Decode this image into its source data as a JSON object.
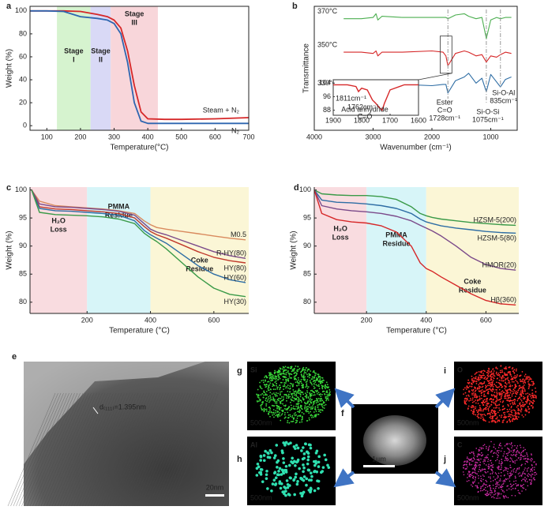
{
  "chart_data": [
    {
      "type": "line",
      "panel_label": "a",
      "x_label": "Temperature(°C)",
      "y_label": "Weight (%)",
      "xlim": [
        50,
        700
      ],
      "xticks": [
        100,
        200,
        300,
        400,
        500,
        600,
        700
      ],
      "ylim": [
        -4,
        104
      ],
      "yticks": [
        0,
        20,
        40,
        60,
        80,
        100
      ],
      "regions": [
        {
          "label": [
            "Stage",
            "I"
          ],
          "x0": 130,
          "x1": 230,
          "color": "#d6f3cf"
        },
        {
          "label": [
            "Stage",
            "II"
          ],
          "x0": 230,
          "x1": 290,
          "color": "#d9d9f6"
        },
        {
          "label": [
            "Stage",
            "III"
          ],
          "x0": 290,
          "x1": 430,
          "color": "#f8d6da"
        }
      ],
      "x": [
        50,
        100,
        150,
        200,
        250,
        280,
        300,
        320,
        340,
        360,
        380,
        400,
        450,
        500,
        600,
        700
      ],
      "series": [
        {
          "name": "Steam + N₂",
          "color": "#d62728",
          "values": [
            100,
            100,
            100,
            99.5,
            97,
            95,
            92,
            85,
            65,
            35,
            12,
            6,
            5.5,
            5.5,
            6,
            7
          ]
        },
        {
          "name": "N₂",
          "color": "#2e66b0",
          "values": [
            100,
            100,
            99.5,
            95,
            93.5,
            92,
            89,
            80,
            55,
            20,
            4,
            2,
            2,
            2,
            2,
            2
          ]
        }
      ]
    },
    {
      "type": "line",
      "panel_label": "b",
      "x_label": "Wavenumber (cm⁻¹)",
      "y_label": "Transmittance",
      "xlim": [
        4000,
        550
      ],
      "xticks": [
        4000,
        3000,
        2000,
        1000
      ],
      "ylim": [
        0,
        10
      ],
      "x": [
        3500,
        3200,
        3000,
        2950,
        2920,
        2850,
        2500,
        2000,
        1811,
        1762,
        1728,
        1600,
        1450,
        1375,
        1250,
        1150,
        1075,
        1000,
        900,
        835,
        750,
        650
      ],
      "series": [
        {
          "name": "370°C",
          "color": "#4caf50",
          "values": [
            9,
            9,
            9.1,
            9.4,
            8.9,
            9.2,
            9.1,
            9.1,
            9.1,
            9.1,
            9.0,
            9.3,
            9.4,
            9.2,
            9.0,
            9.1,
            7.4,
            8.9,
            9.1,
            9.0,
            9.1,
            9.1
          ]
        },
        {
          "name": "350°C",
          "color": "#d62728",
          "values": [
            6.3,
            6.3,
            6.2,
            6.4,
            6.0,
            6.3,
            6.3,
            6.4,
            6.3,
            6.0,
            5.2,
            6.2,
            6.4,
            6.3,
            6.0,
            6.1,
            5.5,
            6.0,
            5.9,
            6.1,
            6.3,
            6.2
          ]
        },
        {
          "name": "330°C",
          "color": "#2e6da4",
          "values": [
            3.2,
            3.3,
            3.1,
            3.8,
            3.0,
            3.6,
            3.7,
            3.6,
            3.7,
            3.7,
            3.0,
            4.0,
            4.3,
            4.6,
            3.8,
            4.2,
            3.1,
            4.5,
            3.9,
            3.5,
            4.1,
            4.3
          ]
        }
      ],
      "reference_lines": [
        1728,
        1075,
        835
      ],
      "annotations": [
        [
          "Ester",
          "C=O",
          "1728cm⁻¹"
        ],
        [
          "Si-O-Si",
          "1075cm⁻¹"
        ],
        [
          "Si-O-Al",
          "835cm⁻¹"
        ]
      ],
      "inset": {
        "xlim": [
          1900,
          1600
        ],
        "xticks": [
          1900,
          1800,
          1700,
          1600
        ],
        "ylim": [
          85,
          106
        ],
        "yticks": [
          88,
          96,
          104
        ],
        "x": [
          1900,
          1850,
          1820,
          1811,
          1800,
          1780,
          1765,
          1762,
          1750,
          1735,
          1728,
          1720,
          1700,
          1650,
          1600
        ],
        "values": [
          103,
          103,
          102,
          99,
          101,
          100,
          95,
          94,
          92,
          89,
          88,
          92,
          100,
          103,
          103
        ],
        "color": "#d62728",
        "annotations": [
          "1811cm⁻¹",
          "1762cm⁻¹",
          "Acid anhydride",
          "C=O"
        ]
      }
    },
    {
      "type": "line",
      "panel_label": "c",
      "x_label": "Temperature (°C)",
      "y_label": "Weight (%)",
      "xlim": [
        20,
        710
      ],
      "xticks": [
        200,
        400,
        600
      ],
      "ylim": [
        78,
        100.5
      ],
      "yticks": [
        80,
        85,
        90,
        95,
        100
      ],
      "regions": [
        {
          "label": [
            "H₂O",
            "Loss"
          ],
          "x0": 20,
          "x1": 200,
          "color": "#f9dce0"
        },
        {
          "label": [
            "PMMA",
            "Residue"
          ],
          "x0": 200,
          "x1": 400,
          "color": "#d7f5f8"
        },
        {
          "label": [
            "Coke",
            "Residue"
          ],
          "x0": 400,
          "x1": 710,
          "color": "#fbf6d6"
        }
      ],
      "x": [
        25,
        50,
        100,
        150,
        200,
        250,
        300,
        350,
        380,
        400,
        420,
        450,
        500,
        550,
        600,
        650,
        700
      ],
      "series": [
        {
          "name": "M0.5",
          "color": "#d98a5e",
          "values": [
            100,
            98,
            97.2,
            97,
            96.8,
            96.6,
            96.3,
            95.8,
            94.5,
            93.8,
            93.3,
            93,
            92.6,
            92.2,
            91.8,
            91.4,
            91.1
          ]
        },
        {
          "name": "R-HY(80)",
          "color": "#7b4a8a",
          "values": [
            100,
            97.5,
            97,
            96.9,
            96.7,
            96.5,
            96.2,
            95.5,
            94,
            93,
            92.5,
            92,
            91,
            90,
            89,
            88.3,
            87.8
          ]
        },
        {
          "name": "HY(80)",
          "color": "#c0392b",
          "values": [
            100,
            97,
            96.6,
            96.5,
            96.3,
            96.1,
            95.8,
            95,
            93.5,
            92.6,
            92,
            91.4,
            90.2,
            89,
            88,
            87.4,
            87
          ]
        },
        {
          "name": "HY(60)",
          "color": "#2e6da4",
          "values": [
            100,
            96.7,
            96.3,
            96.2,
            96,
            95.8,
            95.5,
            94.5,
            92.8,
            92,
            91.4,
            90.5,
            88.5,
            86.5,
            85,
            84,
            83.5
          ]
        },
        {
          "name": "HY(30)",
          "color": "#3a9a48",
          "values": [
            100,
            96,
            95.6,
            95.5,
            95.4,
            95.2,
            94.8,
            94,
            92.3,
            91.5,
            90.8,
            89.5,
            87,
            84.5,
            82.5,
            81.4,
            81
          ]
        }
      ]
    },
    {
      "type": "line",
      "panel_label": "d",
      "x_label": "Temperature (°C)",
      "y_label": "Weight (%)",
      "xlim": [
        25,
        710
      ],
      "xticks": [
        200,
        400,
        600
      ],
      "ylim": [
        78,
        100.5
      ],
      "yticks": [
        80,
        85,
        90,
        95,
        100
      ],
      "regions": [
        {
          "label": [
            "H₂O",
            "Loss"
          ],
          "x0": 25,
          "x1": 200,
          "color": "#f9dce0"
        },
        {
          "label": [
            "PMMA",
            "Residue"
          ],
          "x0": 200,
          "x1": 400,
          "color": "#d7f5f8"
        },
        {
          "label": [
            "Coke",
            "Residue"
          ],
          "x0": 400,
          "x1": 710,
          "color": "#fbf6d6"
        }
      ],
      "x": [
        25,
        50,
        100,
        150,
        200,
        250,
        300,
        350,
        380,
        400,
        420,
        450,
        500,
        550,
        600,
        650,
        700
      ],
      "series": [
        {
          "name": "HZSM-5(200)",
          "color": "#3a9a48",
          "values": [
            100,
            99.3,
            99.1,
            99,
            99,
            98.8,
            98.3,
            97,
            95.8,
            95.4,
            95.1,
            94.8,
            94.5,
            94.2,
            94,
            93.8,
            93.7
          ]
        },
        {
          "name": "HZSM-5(80)",
          "color": "#2e6da4",
          "values": [
            100,
            98.2,
            97.8,
            97.7,
            97.5,
            97.2,
            96.7,
            95.8,
            94.8,
            94.3,
            94,
            93.6,
            93.2,
            92.9,
            92.6,
            92.4,
            92.3
          ]
        },
        {
          "name": "HMOR(20)",
          "color": "#7b4a8a",
          "values": [
            100,
            97.2,
            96.6,
            96.3,
            96.1,
            95.8,
            95.3,
            94.5,
            93.7,
            93.2,
            92.7,
            91.8,
            90,
            88,
            86.7,
            86,
            85.7
          ]
        },
        {
          "name": "Hβ(360)",
          "color": "#d62728",
          "values": [
            100,
            95.8,
            94.7,
            94.3,
            94.1,
            93.6,
            92.5,
            90,
            87,
            86,
            85.5,
            84.5,
            83,
            81.5,
            80.3,
            79.7,
            79.5
          ]
        }
      ]
    }
  ],
  "micrographs": [
    {
      "panel_label": "e",
      "annotation": "d₍₁₁₁₎=1.395nm",
      "scale_bar": "20nm"
    },
    {
      "panel_label": "f",
      "scale_bar": "1µm"
    },
    {
      "panel_label": "g",
      "element": "Si",
      "scale_bar": "500nm"
    },
    {
      "panel_label": "h",
      "element": "Al",
      "scale_bar": "500nm"
    },
    {
      "panel_label": "i",
      "element": "O",
      "scale_bar": "500nm"
    },
    {
      "panel_label": "j",
      "element": "C",
      "scale_bar": "500nm"
    }
  ]
}
